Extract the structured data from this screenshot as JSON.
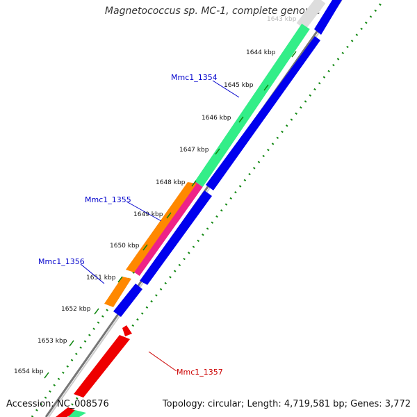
{
  "title": "Magnetococcus sp. MC-1, complete genome",
  "footer": {
    "accession": "Accession: NC_008576",
    "summary": "Topology: circular; Length: 4,719,581 bp; Genes: 3,772"
  },
  "ruler": {
    "partial_top_label": "1643 kbp",
    "ticks": [
      "1644 kbp",
      "1645 kbp",
      "1646 kbp",
      "1647 kbp",
      "1648 kbp",
      "1649 kbp",
      "1650 kbp",
      "1651 kbp",
      "1652 kbp",
      "1653 kbp",
      "1654 kbp"
    ]
  },
  "genes": [
    {
      "name": "Mmc1_1354",
      "color": "#0000cc"
    },
    {
      "name": "Mmc1_1355",
      "color": "#0000cc"
    },
    {
      "name": "Mmc1_1356",
      "color": "#0000cc"
    },
    {
      "name": "Mmc1_1357",
      "color": "#cc0000"
    }
  ],
  "colors": {
    "cog_green": "#33ee88",
    "cog_orange": "#ff8800",
    "cog_magenta": "#ee2288",
    "cds_blue": "#0000ee",
    "cds_red": "#ee0000",
    "backbone": "#777777",
    "gc_skew": "#118811"
  }
}
